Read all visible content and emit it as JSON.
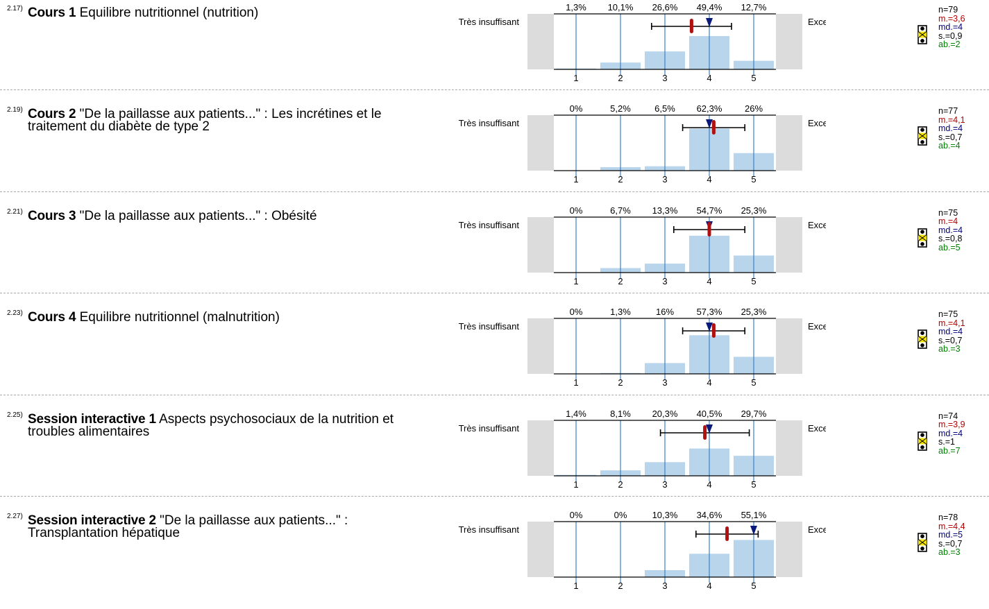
{
  "scale": {
    "left_label": "Très insuffisant",
    "right_label": "Excellent",
    "ticks": [
      "1",
      "2",
      "3",
      "4",
      "5"
    ]
  },
  "chart_data": [
    {
      "type": "bar",
      "number": "2.17)",
      "title_bold": "Cours 1",
      "title_rest": " Equilibre nutritionnel (nutrition)",
      "categories": [
        "1",
        "2",
        "3",
        "4",
        "5"
      ],
      "values": [
        1.3,
        10.1,
        26.6,
        49.4,
        12.7
      ],
      "percent_labels": [
        "1,3%",
        "10,1%",
        "26,6%",
        "49,4%",
        "12,7%"
      ],
      "mean": 3.6,
      "median": 4,
      "sd": 0.9,
      "n": 79,
      "ab": 2,
      "stats_text": {
        "n": "n=79",
        "m": "m.=3,6",
        "md": "md.=4",
        "s": "s.=0,9",
        "ab": "ab.=2"
      }
    },
    {
      "type": "bar",
      "number": "2.19)",
      "title_bold": "Cours 2",
      "title_rest": " \"De la paillasse aux patients...\" : Les incrétines et le traitement du diabète de type 2",
      "categories": [
        "1",
        "2",
        "3",
        "4",
        "5"
      ],
      "values": [
        0,
        5.2,
        6.5,
        62.3,
        26
      ],
      "percent_labels": [
        "0%",
        "5,2%",
        "6,5%",
        "62,3%",
        "26%"
      ],
      "mean": 4.1,
      "median": 4,
      "sd": 0.7,
      "n": 77,
      "ab": 4,
      "stats_text": {
        "n": "n=77",
        "m": "m.=4,1",
        "md": "md.=4",
        "s": "s.=0,7",
        "ab": "ab.=4"
      }
    },
    {
      "type": "bar",
      "number": "2.21)",
      "title_bold": "Cours 3",
      "title_rest": " \"De la paillasse aux patients...\" : Obésité",
      "categories": [
        "1",
        "2",
        "3",
        "4",
        "5"
      ],
      "values": [
        0,
        6.7,
        13.3,
        54.7,
        25.3
      ],
      "percent_labels": [
        "0%",
        "6,7%",
        "13,3%",
        "54,7%",
        "25,3%"
      ],
      "mean": 4,
      "median": 4,
      "sd": 0.8,
      "n": 75,
      "ab": 5,
      "stats_text": {
        "n": "n=75",
        "m": "m.=4",
        "md": "md.=4",
        "s": "s.=0,8",
        "ab": "ab.=5"
      }
    },
    {
      "type": "bar",
      "number": "2.23)",
      "title_bold": "Cours 4",
      "title_rest": " Equilibre nutritionnel (malnutrition)",
      "categories": [
        "1",
        "2",
        "3",
        "4",
        "5"
      ],
      "values": [
        0,
        1.3,
        16,
        57.3,
        25.3
      ],
      "percent_labels": [
        "0%",
        "1,3%",
        "16%",
        "57,3%",
        "25,3%"
      ],
      "mean": 4.1,
      "median": 4,
      "sd": 0.7,
      "n": 75,
      "ab": 3,
      "stats_text": {
        "n": "n=75",
        "m": "m.=4,1",
        "md": "md.=4",
        "s": "s.=0,7",
        "ab": "ab.=3"
      }
    },
    {
      "type": "bar",
      "number": "2.25)",
      "title_bold": "Session interactive 1",
      "title_rest": " Aspects psychosociaux de la nutrition et troubles alimentaires",
      "categories": [
        "1",
        "2",
        "3",
        "4",
        "5"
      ],
      "values": [
        1.4,
        8.1,
        20.3,
        40.5,
        29.7
      ],
      "percent_labels": [
        "1,4%",
        "8,1%",
        "20,3%",
        "40,5%",
        "29,7%"
      ],
      "mean": 3.9,
      "median": 4,
      "sd": 1,
      "n": 74,
      "ab": 7,
      "stats_text": {
        "n": "n=74",
        "m": "m.=3,9",
        "md": "md.=4",
        "s": "s.=1",
        "ab": "ab.=7"
      }
    },
    {
      "type": "bar",
      "number": "2.27)",
      "title_bold": "Session interactive 2",
      "title_rest": " \"De la paillasse aux patients...\" : Transplantation hépatique",
      "categories": [
        "1",
        "2",
        "3",
        "4",
        "5"
      ],
      "values": [
        0,
        0,
        10.3,
        34.6,
        55.1
      ],
      "percent_labels": [
        "0%",
        "0%",
        "10,3%",
        "34,6%",
        "55,1%"
      ],
      "mean": 4.4,
      "median": 5,
      "sd": 0.7,
      "n": 78,
      "ab": 3,
      "stats_text": {
        "n": "n=78",
        "m": "m.=4,4",
        "md": "md.=5",
        "s": "s.=0,7",
        "ab": "ab.=3"
      }
    }
  ],
  "colors": {
    "bar": "#b8d5ec",
    "gridline": "#3c7fc4",
    "mean": "#b01010",
    "median": "#0a1a7a",
    "side_box": "#dcdcdc",
    "stats_m": "#b00000",
    "stats_md": "#00007a",
    "stats_ab": "#008000"
  },
  "legend_icon": "traffic-light-icon"
}
